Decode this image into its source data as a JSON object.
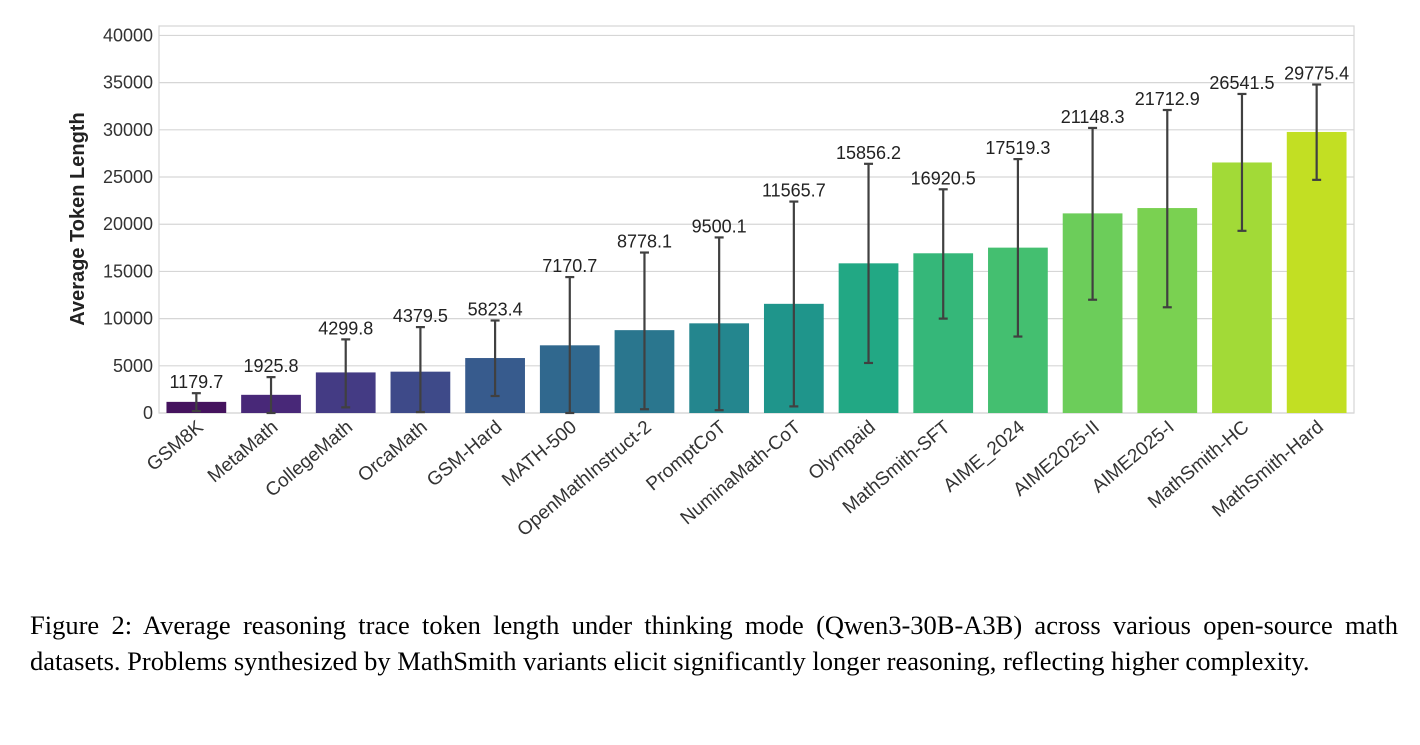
{
  "chart_data": {
    "type": "bar",
    "ylabel": "Average Token Length",
    "ylim": [
      0,
      41000
    ],
    "yticks": [
      0,
      5000,
      10000,
      15000,
      20000,
      25000,
      30000,
      35000,
      40000
    ],
    "grid": "y",
    "error_bars": true,
    "categories": [
      "GSM8K",
      "MetaMath",
      "CollegeMath",
      "OrcaMath",
      "GSM-Hard",
      "MATH-500",
      "OpenMathInstruct-2",
      "PromptCoT",
      "NuminaMath-CoT",
      "Olympaid",
      "MathSmith-SFT",
      "AIME_2024",
      "AIME2025-II",
      "AIME2025-I",
      "MathSmith-HC",
      "MathSmith-Hard"
    ],
    "values": [
      1179.7,
      1925.8,
      4299.8,
      4379.5,
      5823.4,
      7170.7,
      8778.1,
      9500.1,
      11565.7,
      15856.2,
      16920.5,
      17519.3,
      21148.3,
      21712.9,
      26541.5,
      29775.4
    ],
    "labels": [
      "1179.7",
      "1925.8",
      "4299.8",
      "4379.5",
      "5823.4",
      "7170.7",
      "8778.1",
      "9500.1",
      "11565.7",
      "15856.2",
      "16920.5",
      "17519.3",
      "21148.3",
      "21712.9",
      "26541.5",
      "29775.4"
    ],
    "error_low": [
      200,
      0,
      600,
      100,
      1800,
      0,
      400,
      300,
      700,
      5300,
      10000,
      8100,
      12000,
      11200,
      19300,
      24700
    ],
    "error_high": [
      2100,
      3800,
      7800,
      9100,
      9800,
      14400,
      17000,
      18600,
      22400,
      26400,
      23700,
      26900,
      30200,
      32100,
      33800,
      34800
    ],
    "colors": [
      "#45135e",
      "#482878",
      "#443b84",
      "#3e4a89",
      "#375b8d",
      "#30688e",
      "#2a768e",
      "#24868e",
      "#1f958b",
      "#22a884",
      "#35b779",
      "#44bf70",
      "#6ccd5a",
      "#7ad151",
      "#a2da37",
      "#c2df23"
    ]
  },
  "caption": "Figure 2: Average reasoning trace token length under thinking mode (Qwen3-30B-A3B) across various open-source math datasets. Problems synthesized by MathSmith variants elicit significantly longer reasoning, reflecting higher complexity."
}
